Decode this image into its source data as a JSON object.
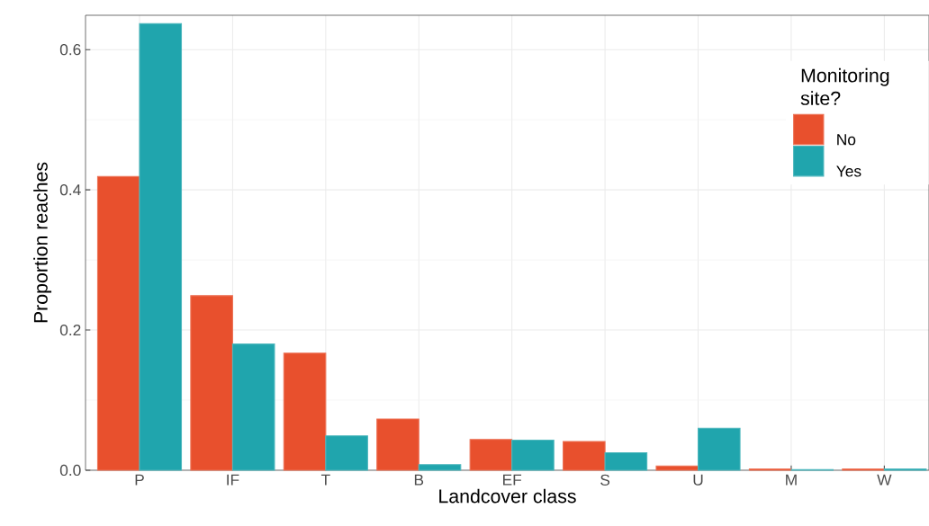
{
  "chart_data": {
    "type": "bar",
    "xlabel": "Landcover class",
    "ylabel": "Proportion reaches",
    "legend_title": "Monitoring site?",
    "categories": [
      "P",
      "IF",
      "T",
      "B",
      "EF",
      "S",
      "U",
      "M",
      "W"
    ],
    "series": [
      {
        "name": "No",
        "color": "#e8502d",
        "values": [
          0.419,
          0.249,
          0.167,
          0.073,
          0.044,
          0.041,
          0.006,
          0.002,
          0.002
        ]
      },
      {
        "name": "Yes",
        "color": "#20a5ad",
        "values": [
          0.637,
          0.18,
          0.049,
          0.008,
          0.043,
          0.025,
          0.06,
          0.001,
          0.002
        ]
      }
    ],
    "ylim": [
      0,
      0.649
    ],
    "yticks": [
      {
        "value": 0,
        "label": "0.0"
      },
      {
        "value": 0.2,
        "label": "0.2"
      },
      {
        "value": 0.4,
        "label": "0.4"
      },
      {
        "value": 0.6,
        "label": "0.6"
      }
    ],
    "grid": true,
    "legend": "top right"
  }
}
